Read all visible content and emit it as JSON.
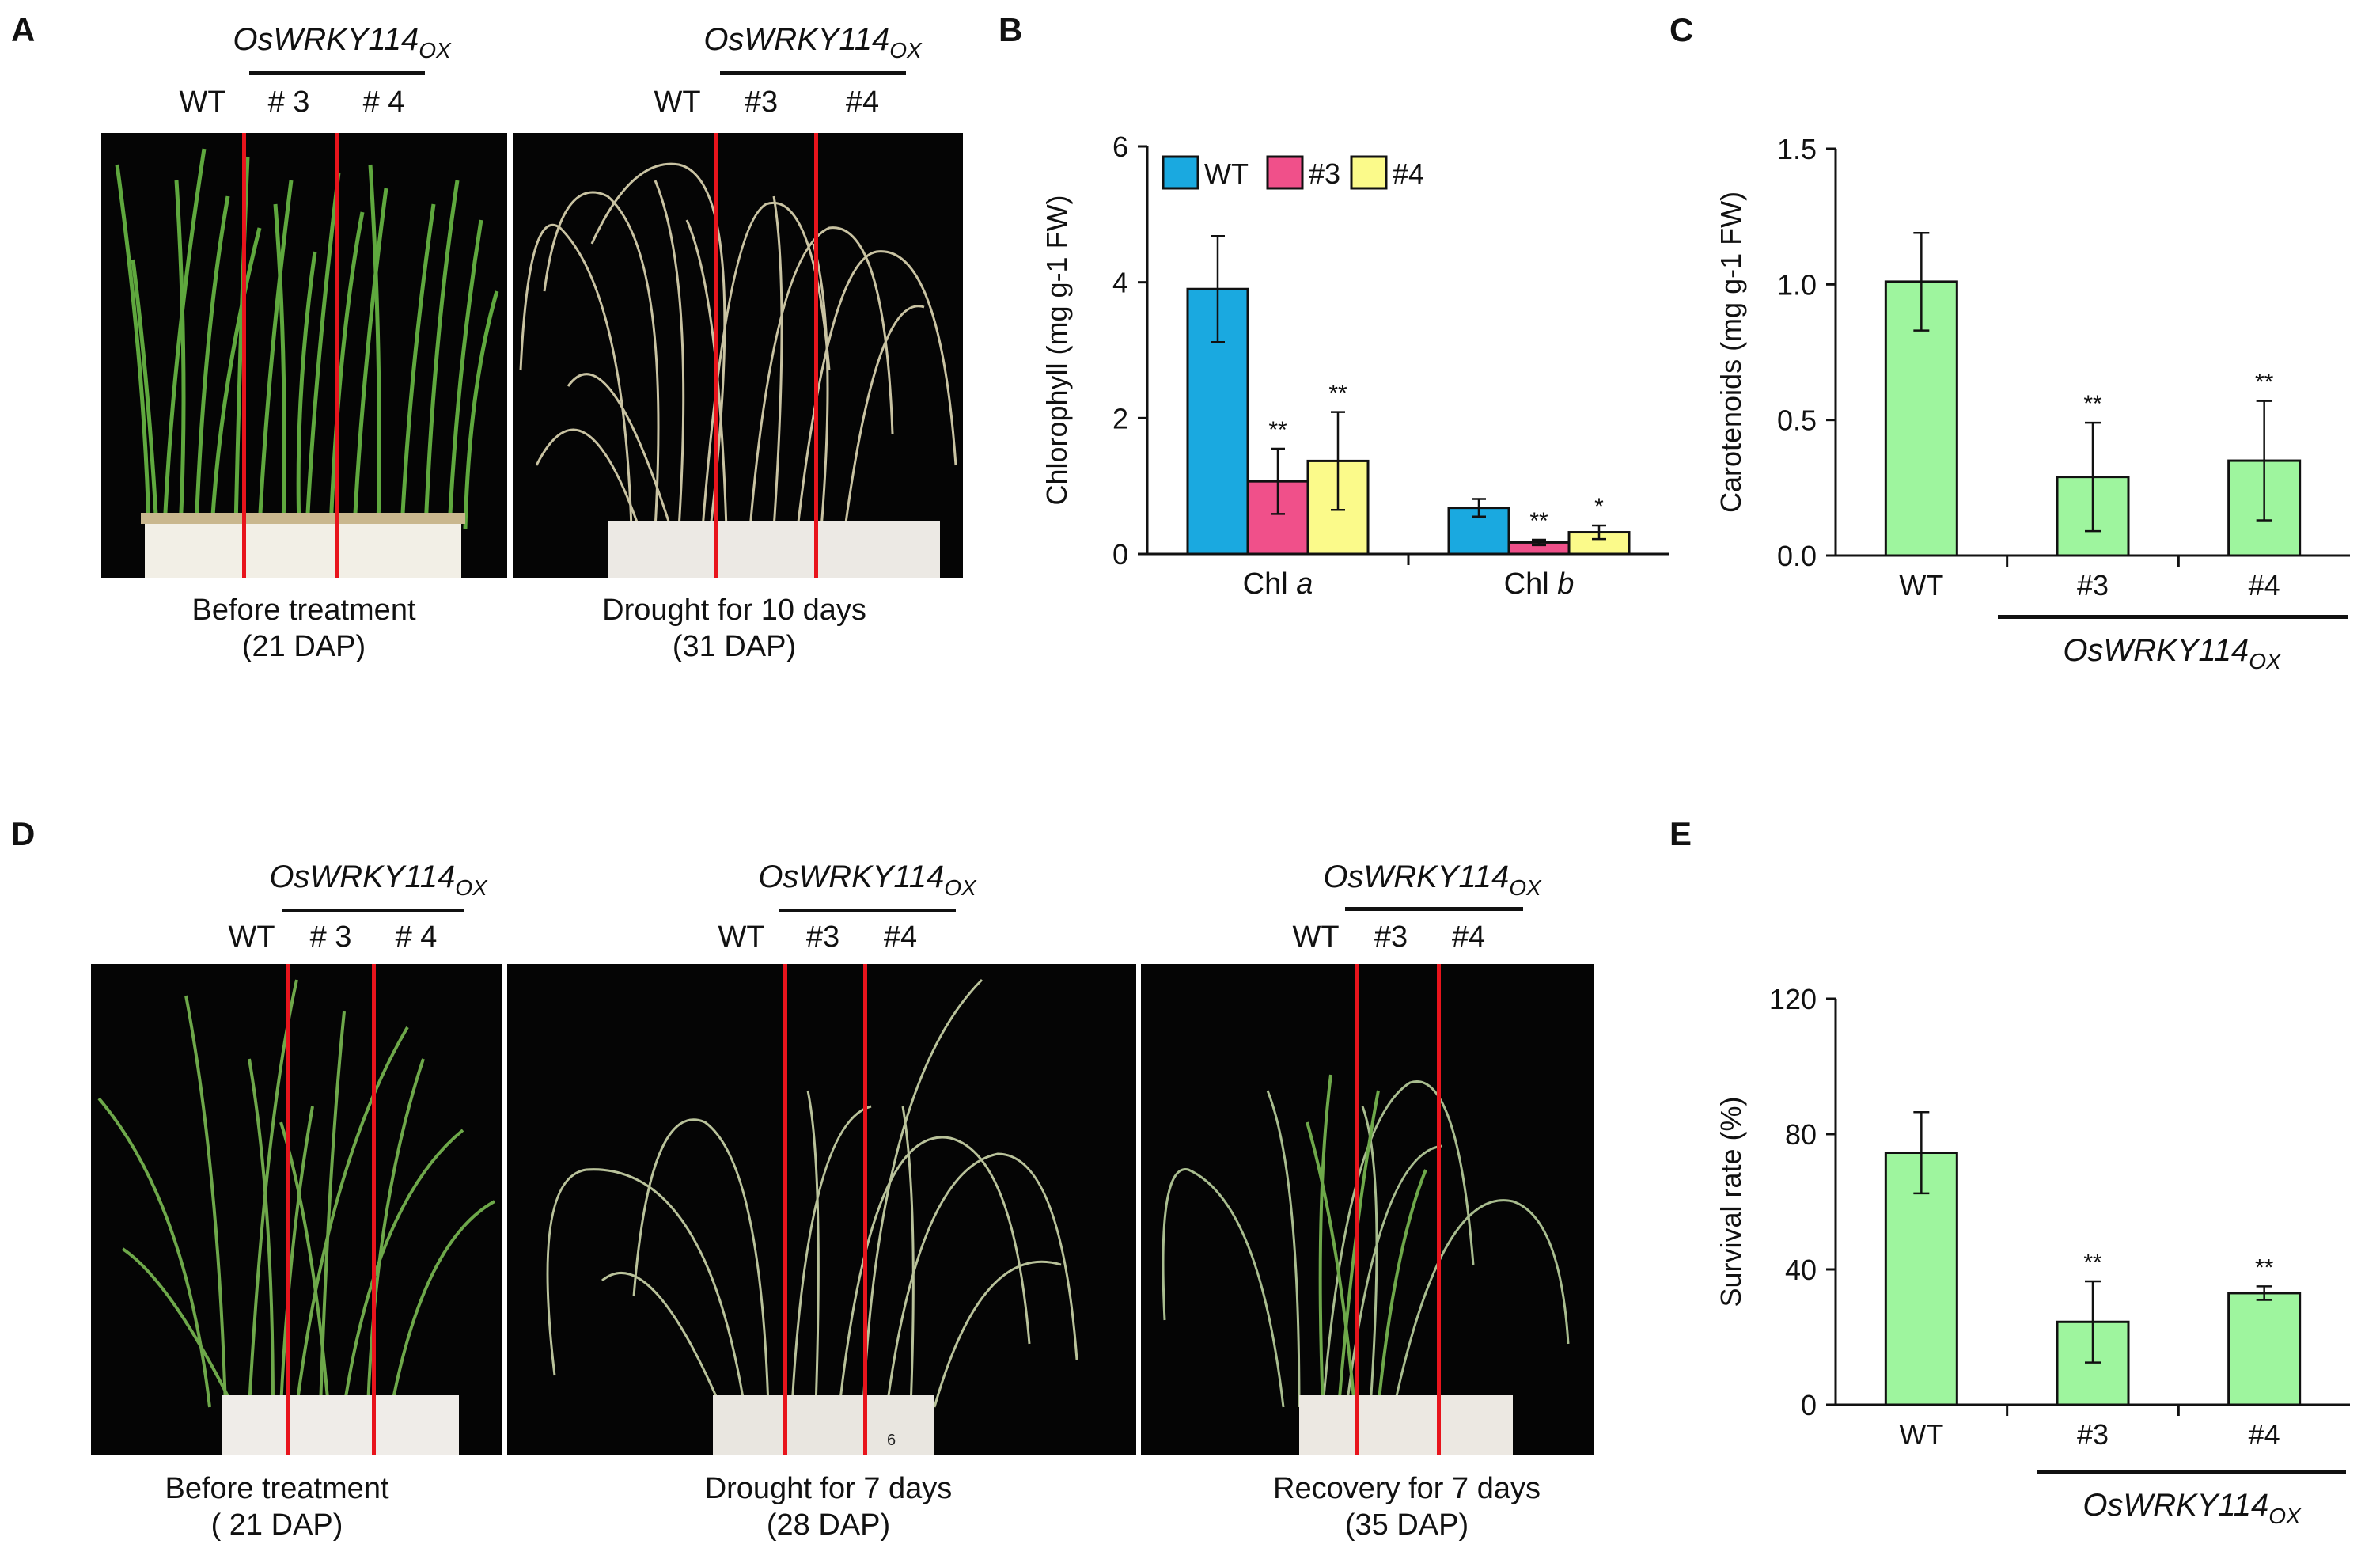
{
  "panelA": {
    "letter": "A",
    "photos": [
      {
        "gene_main": "OsWRKY114",
        "gene_sub": "OX",
        "labels": [
          "WT",
          "# 3",
          "# 4"
        ],
        "caption_line1": "Before treatment",
        "caption_line2": "(21 DAP)"
      },
      {
        "gene_main": "OsWRKY114",
        "gene_sub": "OX",
        "labels": [
          "WT",
          "#3",
          "#4"
        ],
        "caption_line1": "Drought for 10 days",
        "caption_line2": "(31 DAP)"
      }
    ]
  },
  "panelB": {
    "letter": "B",
    "chart_data": {
      "type": "bar",
      "ylabel": "Chlorophyll (mg g-1 FW)",
      "ylim": [
        0,
        6
      ],
      "yticks": [
        "0",
        "2",
        "4",
        "6"
      ],
      "groups": [
        {
          "label": "Chl ",
          "label_italic": "a"
        },
        {
          "label": "Chl ",
          "label_italic": "b"
        }
      ],
      "series": [
        {
          "name": "WT",
          "color": "#1aa9e0",
          "values": [
            3.9,
            0.68
          ],
          "errors": [
            0.78,
            0.13
          ],
          "sig": [
            "",
            ""
          ]
        },
        {
          "name": "#3",
          "color": "#f0508a",
          "values": [
            1.07,
            0.17
          ],
          "errors": [
            0.48,
            0.04
          ],
          "sig": [
            "**",
            "**"
          ]
        },
        {
          "name": "#4",
          "color": "#fbfa8a",
          "values": [
            1.37,
            0.32
          ],
          "errors": [
            0.72,
            0.1
          ],
          "sig": [
            "**",
            "*"
          ]
        }
      ]
    }
  },
  "panelC": {
    "letter": "C",
    "gene_main": "OsWRKY114",
    "gene_sub": "OX",
    "chart_data": {
      "type": "bar",
      "ylabel": "Carotenoids (mg g-1 FW)",
      "ylim": [
        0,
        1.5
      ],
      "yticks": [
        "0.0",
        "0.5",
        "1.0",
        "1.5"
      ],
      "categories": [
        "WT",
        "#3",
        "#4"
      ],
      "values": [
        1.01,
        0.29,
        0.35
      ],
      "errors": [
        0.18,
        0.2,
        0.22
      ],
      "sig": [
        "",
        "**",
        "**"
      ],
      "color": "#9ef59e"
    }
  },
  "panelD": {
    "letter": "D",
    "photos": [
      {
        "gene_main": "OsWRKY114",
        "gene_sub": "OX",
        "labels": [
          "WT",
          "# 3",
          "# 4"
        ],
        "caption_line1": "Before treatment",
        "caption_line2": "( 21 DAP)"
      },
      {
        "gene_main": "OsWRKY114",
        "gene_sub": "OX",
        "labels": [
          "WT",
          "#3",
          "#4"
        ],
        "caption_line1": "Drought for 7 days",
        "caption_line2": "(28 DAP)"
      },
      {
        "gene_main": "OsWRKY114",
        "gene_sub": "OX",
        "labels": [
          "WT",
          "#3",
          "#4"
        ],
        "caption_line1": "Recovery for 7 days",
        "caption_line2": "(35 DAP)"
      }
    ],
    "pot_number": "6"
  },
  "panelE": {
    "letter": "E",
    "gene_main": "OsWRKY114",
    "gene_sub": "OX",
    "chart_data": {
      "type": "bar",
      "ylabel": "Survival rate (%)",
      "ylim": [
        0,
        120
      ],
      "yticks": [
        "0",
        "40",
        "80",
        "120"
      ],
      "categories": [
        "WT",
        "#3",
        "#4"
      ],
      "values": [
        74.5,
        24.5,
        33
      ],
      "errors": [
        12,
        12,
        2
      ],
      "sig": [
        "",
        "**",
        "**"
      ],
      "color": "#9ef59e"
    }
  }
}
